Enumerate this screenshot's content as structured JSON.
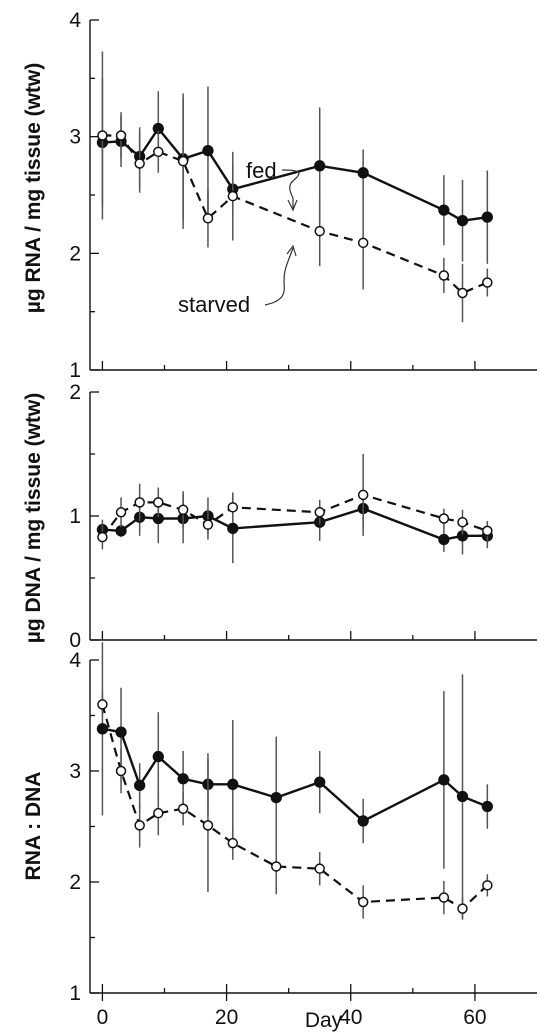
{
  "chart_data": [
    {
      "type": "line",
      "title": "",
      "xlabel": "",
      "ylabel": "µg RNA / mg tissue (wtw)",
      "ylim": [
        1,
        4
      ],
      "xlim": [
        -2,
        70
      ],
      "yticks": [
        "1",
        "2",
        "3",
        "4"
      ],
      "annotations": [
        "fed",
        "starved"
      ],
      "series": [
        {
          "name": "fed",
          "marker": "filled",
          "x": [
            0,
            3,
            6,
            9,
            13,
            17,
            21,
            35,
            42,
            55,
            58,
            62
          ],
          "y": [
            2.95,
            2.96,
            2.83,
            3.07,
            2.81,
            2.88,
            2.55,
            2.75,
            2.69,
            2.37,
            2.28,
            2.31
          ],
          "err": [
            0.55,
            0.22,
            0.25,
            0.32,
            0.52,
            0.55,
            0.22,
            0.5,
            0.2,
            0.3,
            0.35,
            0.4
          ]
        },
        {
          "name": "starved",
          "marker": "open",
          "x": [
            0,
            3,
            6,
            9,
            13,
            17,
            21,
            35,
            42,
            55,
            58,
            62
          ],
          "y": [
            3.01,
            3.01,
            2.77,
            2.87,
            2.79,
            2.3,
            2.49,
            2.19,
            2.09,
            1.81,
            1.66,
            1.75
          ],
          "err": [
            0.72,
            0.2,
            0.25,
            0.18,
            0.58,
            0.25,
            0.38,
            0.3,
            0.4,
            0.15,
            0.25,
            0.12
          ]
        }
      ]
    },
    {
      "type": "line",
      "title": "",
      "xlabel": "",
      "ylabel": "µg DNA / mg tissue (wtw)",
      "ylim": [
        0,
        2
      ],
      "xlim": [
        -2,
        70
      ],
      "yticks": [
        "0",
        "1",
        "2"
      ],
      "series": [
        {
          "name": "fed",
          "marker": "filled",
          "x": [
            0,
            3,
            6,
            9,
            13,
            17,
            21,
            35,
            42,
            55,
            58,
            62
          ],
          "y": [
            0.89,
            0.88,
            0.99,
            0.98,
            0.98,
            1.0,
            0.9,
            0.95,
            1.06,
            0.81,
            0.84,
            0.84
          ],
          "err": [
            0.08,
            0.05,
            0.15,
            0.2,
            0.2,
            0.15,
            0.28,
            0.15,
            0.15,
            0.1,
            0.15,
            0.1
          ]
        },
        {
          "name": "starved",
          "marker": "open",
          "x": [
            0,
            3,
            6,
            9,
            13,
            17,
            21,
            35,
            42,
            55,
            58,
            62
          ],
          "y": [
            0.83,
            1.03,
            1.11,
            1.11,
            1.05,
            0.93,
            1.07,
            1.03,
            1.17,
            0.98,
            0.95,
            0.88
          ],
          "err": [
            0.1,
            0.12,
            0.15,
            0.12,
            0.15,
            0.12,
            0.12,
            0.1,
            0.33,
            0.08,
            0.1,
            0.08
          ]
        }
      ]
    },
    {
      "type": "line",
      "title": "",
      "xlabel": "Day",
      "ylabel": "RNA : DNA",
      "ylim": [
        1,
        4
      ],
      "xlim": [
        -2,
        70
      ],
      "yticks": [
        "1",
        "2",
        "3",
        "4"
      ],
      "xticks": [
        "0",
        "20",
        "40",
        "60"
      ],
      "series": [
        {
          "name": "fed",
          "marker": "filled",
          "x": [
            0,
            3,
            6,
            9,
            13,
            17,
            21,
            28,
            35,
            42,
            55,
            58,
            62
          ],
          "y": [
            3.38,
            3.35,
            2.87,
            3.13,
            2.93,
            2.88,
            2.88,
            2.76,
            2.9,
            2.55,
            2.92,
            2.77,
            2.68
          ],
          "err": [
            0.78,
            0.4,
            0.2,
            0.4,
            0.25,
            0.28,
            0.58,
            0.55,
            0.28,
            0.2,
            0.8,
            1.1,
            0.2
          ]
        },
        {
          "name": "starved",
          "marker": "open",
          "x": [
            0,
            3,
            6,
            9,
            13,
            17,
            21,
            28,
            35,
            42,
            55,
            58,
            62
          ],
          "y": [
            3.6,
            3.0,
            2.51,
            2.62,
            2.66,
            2.51,
            2.35,
            2.14,
            2.12,
            1.82,
            1.86,
            1.76,
            1.97
          ],
          "err": [
            0.1,
            0.2,
            0.2,
            0.2,
            0.15,
            0.6,
            0.15,
            0.25,
            0.15,
            0.15,
            0.15,
            0.1,
            0.1
          ]
        }
      ]
    }
  ]
}
